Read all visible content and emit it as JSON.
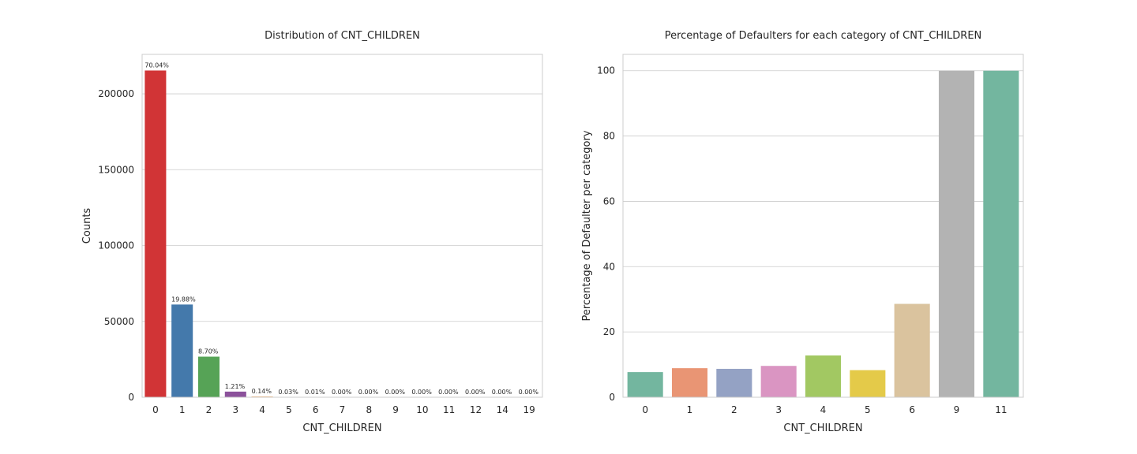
{
  "chart_data": [
    {
      "type": "bar",
      "title": "Distribution of CNT_CHILDREN",
      "xlabel": "CNT_CHILDREN",
      "ylabel": "Counts",
      "ylim": [
        0,
        226000
      ],
      "yticks": [
        0,
        50000,
        100000,
        150000,
        200000
      ],
      "grid": true,
      "categories": [
        "0",
        "1",
        "2",
        "3",
        "4",
        "5",
        "6",
        "7",
        "8",
        "9",
        "10",
        "11",
        "12",
        "14",
        "19"
      ],
      "values": [
        215371,
        61119,
        26749,
        3717,
        429,
        84,
        21,
        7,
        2,
        2,
        2,
        1,
        2,
        3,
        2
      ],
      "data_labels": [
        "70.04%",
        "19.88%",
        "8.70%",
        "1.21%",
        "0.14%",
        "0.03%",
        "0.01%",
        "0.00%",
        "0.00%",
        "0.00%",
        "0.00%",
        "0.00%",
        "0.00%",
        "0.00%",
        "0.00%"
      ],
      "colors": [
        "#d13436",
        "#4479ab",
        "#56a356",
        "#8b519b",
        "#f07f19",
        "#ffff33",
        "#a65628",
        "#f781bf",
        "#999999",
        "#e41a1c",
        "#377eb8",
        "#4daf4a",
        "#984ea3",
        "#ff7f00",
        "#ffff33"
      ]
    },
    {
      "type": "bar",
      "title": "Percentage of Defaulters for each category of CNT_CHILDREN",
      "xlabel": "CNT_CHILDREN",
      "ylabel": "Percentage of Defaulter per category",
      "ylim": [
        0,
        105
      ],
      "yticks": [
        0,
        20,
        40,
        60,
        80,
        100
      ],
      "grid": true,
      "categories": [
        "0",
        "1",
        "2",
        "3",
        "4",
        "5",
        "6",
        "9",
        "11"
      ],
      "values": [
        7.7,
        8.9,
        8.7,
        9.6,
        12.8,
        8.3,
        28.6,
        100,
        100
      ],
      "colors": [
        "#73b69f",
        "#e99574",
        "#94a2c4",
        "#da95c2",
        "#a2c862",
        "#e4ca49",
        "#dac39e",
        "#b3b3b3",
        "#73b69f"
      ]
    }
  ]
}
